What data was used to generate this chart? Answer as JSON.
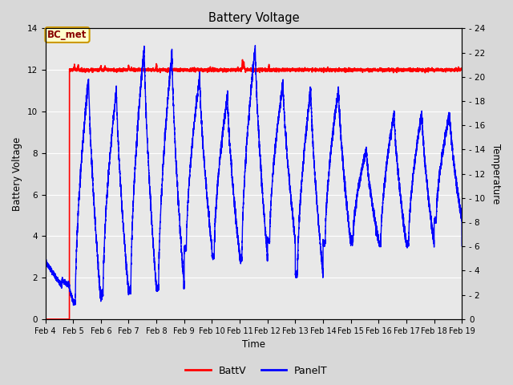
{
  "title": "Battery Voltage",
  "xlabel": "Time",
  "ylabel_left": "Battery Voltage",
  "ylabel_right": "Temperature",
  "annotation": "BC_met",
  "legend_labels": [
    "BattV",
    "PanelT"
  ],
  "legend_colors": [
    "red",
    "blue"
  ],
  "xlim_days": [
    4,
    19
  ],
  "ylim_left": [
    0,
    14
  ],
  "ylim_right": [
    0,
    24
  ],
  "x_ticks": [
    4,
    5,
    6,
    7,
    8,
    9,
    10,
    11,
    12,
    13,
    14,
    15,
    16,
    17,
    18,
    19
  ],
  "x_tick_labels": [
    "Feb 4",
    "Feb 5",
    "Feb 6",
    "Feb 7",
    "Feb 8",
    "Feb 9",
    "Feb 10",
    "Feb 11",
    "Feb 12",
    "Feb 13",
    "Feb 14",
    "Feb 15",
    "Feb 16",
    "Feb 17",
    "Feb 18",
    "Feb 19"
  ],
  "background_color": "#d8d8d8",
  "plot_bg_color": "#e8e8e8",
  "grid_color": "white",
  "annotation_bg": "#ffffcc",
  "annotation_border": "#cc9900",
  "annotation_text_color": "#880000",
  "yticks_left": [
    0,
    2,
    4,
    6,
    8,
    10,
    12,
    14
  ],
  "yticks_right": [
    0,
    2,
    4,
    6,
    8,
    10,
    12,
    14,
    16,
    18,
    20,
    22,
    24
  ]
}
